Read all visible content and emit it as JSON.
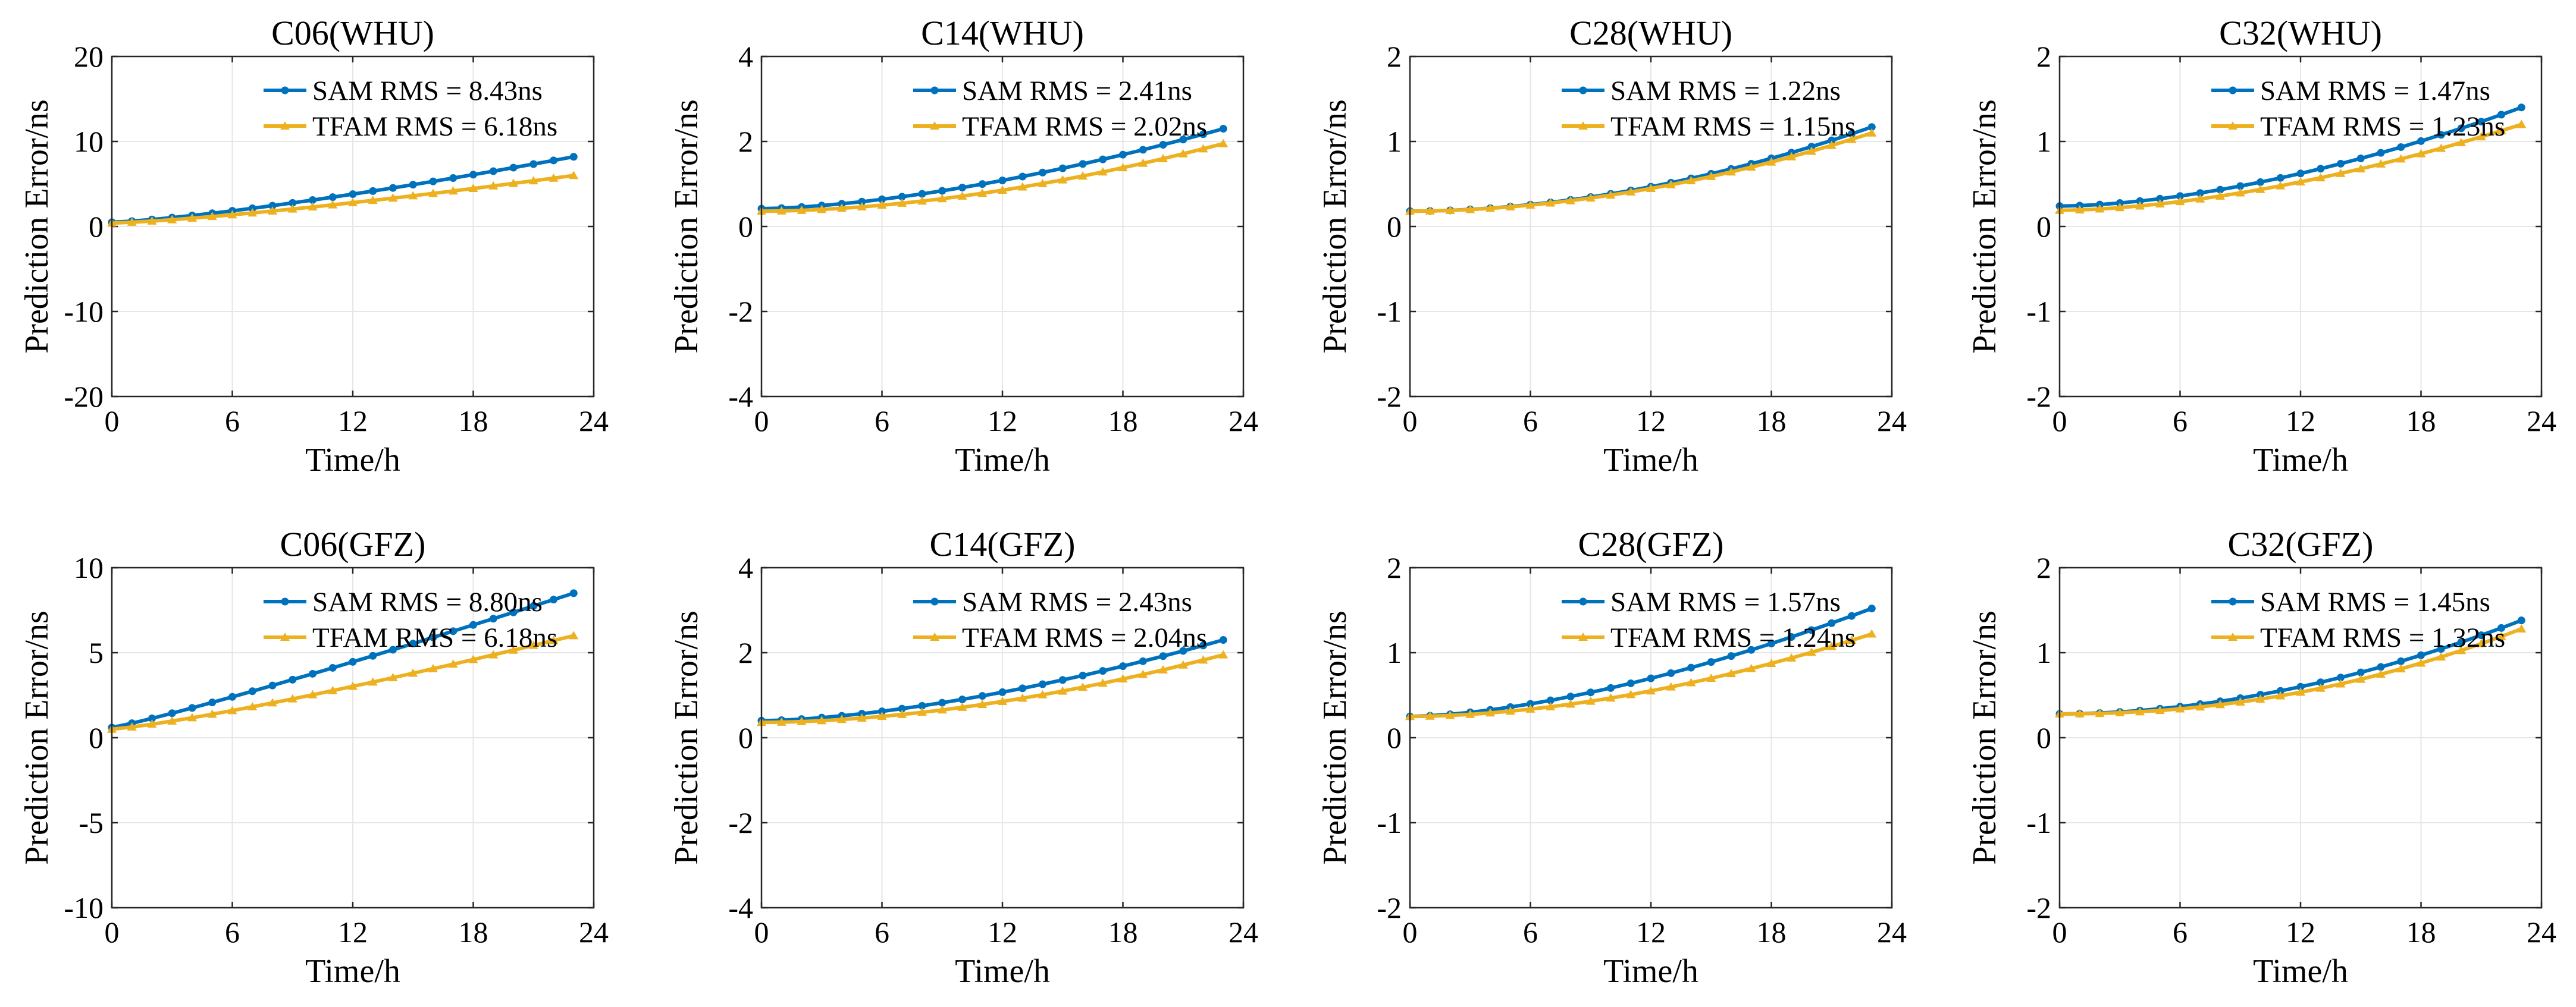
{
  "figure": {
    "x_axis_label": "Time/h",
    "y_axis_label": "Prediction Error/ns"
  },
  "chart_data": [
    {
      "type": "line",
      "title": "C06(WHU)",
      "xlabel": "Time/h",
      "ylabel": "Prediction Error/ns",
      "xlim": [
        0,
        24
      ],
      "ylim": [
        -20,
        20
      ],
      "xticks": [
        0,
        6,
        12,
        18,
        24
      ],
      "yticks": [
        -20,
        -10,
        0,
        10,
        20
      ],
      "grid": true,
      "legend": "top-right",
      "series": [
        {
          "name": "SAM RMS = 8.43ns",
          "color": "#0072BD",
          "marker": "dot",
          "x0": 0,
          "x1": 23,
          "start": 0.5,
          "end": 8.2,
          "curve": 1.3
        },
        {
          "name": "TFAM RMS = 6.18ns",
          "color": "#EDB120",
          "marker": "triangle",
          "x0": 0,
          "x1": 23,
          "start": 0.4,
          "end": 6.0,
          "curve": 1.3
        }
      ]
    },
    {
      "type": "line",
      "title": "C14(WHU)",
      "xlabel": "Time/h",
      "ylabel": "Prediction Error/ns",
      "xlim": [
        0,
        24
      ],
      "ylim": [
        -4,
        4
      ],
      "xticks": [
        0,
        6,
        12,
        18,
        24
      ],
      "yticks": [
        -4,
        -2,
        0,
        2,
        4
      ],
      "grid": true,
      "legend": "top-right",
      "series": [
        {
          "name": "SAM RMS = 2.41ns",
          "color": "#0072BD",
          "marker": "dot",
          "x0": 0,
          "x1": 23,
          "start": 0.42,
          "end": 2.3,
          "curve": 1.6
        },
        {
          "name": "TFAM RMS = 2.02ns",
          "color": "#EDB120",
          "marker": "triangle",
          "x0": 0,
          "x1": 23,
          "start": 0.36,
          "end": 1.95,
          "curve": 1.8
        }
      ]
    },
    {
      "type": "line",
      "title": "C28(WHU)",
      "xlabel": "Time/h",
      "ylabel": "Prediction Error/ns",
      "xlim": [
        0,
        24
      ],
      "ylim": [
        -2,
        2
      ],
      "xticks": [
        0,
        6,
        12,
        18,
        24
      ],
      "yticks": [
        -2,
        -1,
        0,
        1,
        2
      ],
      "grid": true,
      "legend": "top-right",
      "series": [
        {
          "name": "SAM RMS = 1.22ns",
          "color": "#0072BD",
          "marker": "dot",
          "x0": 0,
          "x1": 23,
          "start": 0.18,
          "end": 1.17,
          "curve": 1.9
        },
        {
          "name": "TFAM RMS = 1.15ns",
          "color": "#EDB120",
          "marker": "triangle",
          "x0": 0,
          "x1": 23,
          "start": 0.18,
          "end": 1.1,
          "curve": 1.9
        }
      ]
    },
    {
      "type": "line",
      "title": "C32(WHU)",
      "xlabel": "Time/h",
      "ylabel": "Prediction Error/ns",
      "xlim": [
        0,
        24
      ],
      "ylim": [
        -2,
        2
      ],
      "xticks": [
        0,
        6,
        12,
        18,
        24
      ],
      "yticks": [
        -2,
        -1,
        0,
        1,
        2
      ],
      "grid": true,
      "legend": "top-right",
      "series": [
        {
          "name": "SAM RMS = 1.47ns",
          "color": "#0072BD",
          "marker": "dot",
          "x0": 0,
          "x1": 23,
          "start": 0.24,
          "end": 1.4,
          "curve": 1.7
        },
        {
          "name": "TFAM RMS = 1.23ns",
          "color": "#EDB120",
          "marker": "triangle",
          "x0": 0,
          "x1": 23,
          "start": 0.19,
          "end": 1.2,
          "curve": 1.7
        }
      ]
    },
    {
      "type": "line",
      "title": "C06(GFZ)",
      "xlabel": "Time/h",
      "ylabel": "Prediction Error/ns",
      "xlim": [
        0,
        24
      ],
      "ylim": [
        -10,
        10
      ],
      "xticks": [
        0,
        6,
        12,
        18,
        24
      ],
      "yticks": [
        -10,
        -5,
        0,
        5,
        10
      ],
      "grid": true,
      "legend": "top-right",
      "series": [
        {
          "name": "SAM RMS = 8.80ns",
          "color": "#0072BD",
          "marker": "dot",
          "x0": 0,
          "x1": 23,
          "start": 0.6,
          "end": 8.5,
          "curve": 1.1
        },
        {
          "name": "TFAM RMS = 6.18ns",
          "color": "#EDB120",
          "marker": "triangle",
          "x0": 0,
          "x1": 23,
          "start": 0.5,
          "end": 6.0,
          "curve": 1.2
        }
      ]
    },
    {
      "type": "line",
      "title": "C14(GFZ)",
      "xlabel": "Time/h",
      "ylabel": "Prediction Error/ns",
      "xlim": [
        0,
        24
      ],
      "ylim": [
        -4,
        4
      ],
      "xticks": [
        0,
        6,
        12,
        18,
        24
      ],
      "yticks": [
        -4,
        -2,
        0,
        2,
        4
      ],
      "grid": true,
      "legend": "top-right",
      "series": [
        {
          "name": "SAM RMS = 2.43ns",
          "color": "#0072BD",
          "marker": "dot",
          "x0": 0,
          "x1": 23,
          "start": 0.4,
          "end": 2.3,
          "curve": 1.6
        },
        {
          "name": "TFAM RMS = 2.04ns",
          "color": "#EDB120",
          "marker": "triangle",
          "x0": 0,
          "x1": 23,
          "start": 0.36,
          "end": 1.95,
          "curve": 1.8
        }
      ]
    },
    {
      "type": "line",
      "title": "C28(GFZ)",
      "xlabel": "Time/h",
      "ylabel": "Prediction Error/ns",
      "xlim": [
        0,
        24
      ],
      "ylim": [
        -2,
        2
      ],
      "xticks": [
        0,
        6,
        12,
        18,
        24
      ],
      "yticks": [
        -2,
        -1,
        0,
        1,
        2
      ],
      "grid": true,
      "legend": "top-right",
      "series": [
        {
          "name": "SAM RMS = 1.57ns",
          "color": "#0072BD",
          "marker": "dot",
          "x0": 0,
          "x1": 23,
          "start": 0.25,
          "end": 1.52,
          "curve": 1.6
        },
        {
          "name": "TFAM RMS = 1.24ns",
          "color": "#EDB120",
          "marker": "triangle",
          "x0": 0,
          "x1": 23,
          "start": 0.25,
          "end": 1.22,
          "curve": 1.8
        }
      ]
    },
    {
      "type": "line",
      "title": "C32(GFZ)",
      "xlabel": "Time/h",
      "ylabel": "Prediction Error/ns",
      "xlim": [
        0,
        24
      ],
      "ylim": [
        -2,
        2
      ],
      "xticks": [
        0,
        6,
        12,
        18,
        24
      ],
      "yticks": [
        -2,
        -1,
        0,
        1,
        2
      ],
      "grid": true,
      "legend": "top-right",
      "series": [
        {
          "name": "SAM RMS = 1.45ns",
          "color": "#0072BD",
          "marker": "dot",
          "x0": 0,
          "x1": 23,
          "start": 0.28,
          "end": 1.38,
          "curve": 1.9
        },
        {
          "name": "TFAM RMS = 1.32ns",
          "color": "#EDB120",
          "marker": "triangle",
          "x0": 0,
          "x1": 23,
          "start": 0.28,
          "end": 1.28,
          "curve": 2.1
        }
      ]
    }
  ]
}
